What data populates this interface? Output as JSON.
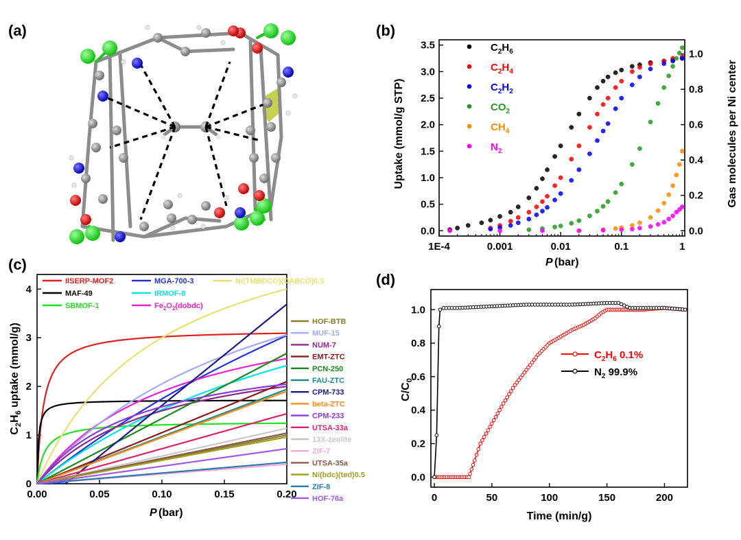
{
  "panels": {
    "a": "(a)",
    "b": "(b)",
    "c": "(c)",
    "d": "(d)"
  },
  "chart_data": [
    {
      "panel": "b",
      "type": "scatter",
      "x_scale": "log",
      "xlabel": "P (bar)",
      "ylabel": "Uptake (mmol/g STP)",
      "y2label": "Gas molecules per Ni center",
      "xlim": [
        0.0001,
        1.1
      ],
      "ylim": [
        -0.1,
        3.6
      ],
      "y2lim": [
        -0.03,
        1.08
      ],
      "x_ticks": [
        {
          "v": 0.0001,
          "label": "1E-4"
        },
        {
          "v": 0.001,
          "label": "0.001"
        },
        {
          "v": 0.01,
          "label": "0.01"
        },
        {
          "v": 0.1,
          "label": "0.1"
        },
        {
          "v": 1,
          "label": "1"
        }
      ],
      "y_ticks": [
        "0.0",
        "0.5",
        "1.0",
        "1.5",
        "2.0",
        "2.5",
        "3.0",
        "3.5"
      ],
      "y2_ticks": [
        "0.0",
        "0.2",
        "0.4",
        "0.6",
        "0.8",
        "1.0"
      ],
      "legend_position": "top-left",
      "series": [
        {
          "name": "C2H6",
          "sub": "6",
          "base": "C",
          "mid": "H",
          "color": "#000000",
          "x": [
            0.00015,
            0.0002,
            0.0003,
            0.0005,
            0.0007,
            0.001,
            0.0015,
            0.002,
            0.003,
            0.004,
            0.005,
            0.006,
            0.008,
            0.01,
            0.015,
            0.02,
            0.03,
            0.04,
            0.05,
            0.06,
            0.08,
            0.1,
            0.15,
            0.2,
            0.3,
            0.5,
            0.7,
            1.0
          ],
          "y": [
            0.02,
            0.05,
            0.1,
            0.15,
            0.2,
            0.27,
            0.35,
            0.45,
            0.62,
            0.8,
            0.98,
            1.15,
            1.4,
            1.6,
            1.95,
            2.2,
            2.5,
            2.7,
            2.82,
            2.9,
            2.98,
            3.03,
            3.1,
            3.13,
            3.17,
            3.2,
            3.22,
            3.25
          ]
        },
        {
          "name": "C2H4",
          "sub": "4",
          "base": "C",
          "mid": "H",
          "color": "#ff0000",
          "x": [
            0.0007,
            0.001,
            0.0015,
            0.002,
            0.003,
            0.004,
            0.005,
            0.006,
            0.008,
            0.01,
            0.015,
            0.02,
            0.03,
            0.04,
            0.05,
            0.06,
            0.08,
            0.1,
            0.15,
            0.2,
            0.3,
            0.5,
            0.7,
            1.0
          ],
          "y": [
            0.05,
            0.1,
            0.18,
            0.25,
            0.35,
            0.45,
            0.55,
            0.65,
            0.85,
            1.0,
            1.35,
            1.6,
            1.95,
            2.2,
            2.38,
            2.5,
            2.7,
            2.82,
            3.0,
            3.08,
            3.15,
            3.2,
            3.25,
            3.28
          ]
        },
        {
          "name": "C2H2",
          "sub": "2",
          "base": "C",
          "mid": "H",
          "color": "#0000ff",
          "x": [
            0.0007,
            0.001,
            0.0015,
            0.002,
            0.003,
            0.004,
            0.005,
            0.006,
            0.008,
            0.01,
            0.015,
            0.02,
            0.03,
            0.04,
            0.05,
            0.06,
            0.08,
            0.1,
            0.15,
            0.2,
            0.3,
            0.5,
            0.7,
            1.0
          ],
          "y": [
            0.03,
            0.06,
            0.1,
            0.15,
            0.22,
            0.3,
            0.37,
            0.44,
            0.58,
            0.7,
            0.95,
            1.15,
            1.45,
            1.7,
            1.88,
            2.02,
            2.3,
            2.5,
            2.75,
            2.9,
            3.05,
            3.15,
            3.2,
            3.25
          ]
        },
        {
          "name": "CO2",
          "sub": "2",
          "base": "CO",
          "mid": "",
          "color": "#1e9e1e",
          "x": [
            0.003,
            0.005,
            0.008,
            0.01,
            0.015,
            0.02,
            0.03,
            0.04,
            0.05,
            0.06,
            0.08,
            0.1,
            0.15,
            0.2,
            0.3,
            0.4,
            0.5,
            0.6,
            0.7,
            0.8,
            0.9,
            1.0
          ],
          "y": [
            0.02,
            0.04,
            0.07,
            0.09,
            0.14,
            0.19,
            0.28,
            0.37,
            0.46,
            0.55,
            0.72,
            0.88,
            1.25,
            1.55,
            2.05,
            2.4,
            2.7,
            2.92,
            3.1,
            3.25,
            3.35,
            3.45
          ]
        },
        {
          "name": "CH4",
          "sub": "4",
          "base": "CH",
          "mid": "",
          "color": "#ff8c00",
          "x": [
            0.02,
            0.05,
            0.08,
            0.1,
            0.15,
            0.2,
            0.3,
            0.4,
            0.5,
            0.6,
            0.7,
            0.8,
            0.9,
            1.0
          ],
          "y": [
            0.0,
            0.02,
            0.04,
            0.06,
            0.1,
            0.15,
            0.25,
            0.38,
            0.52,
            0.68,
            0.85,
            1.05,
            1.25,
            1.5
          ]
        },
        {
          "name": "N2",
          "sub": "2",
          "base": "N",
          "mid": "",
          "color": "#ff00ff",
          "x": [
            0.00015,
            0.001,
            0.005,
            0.02,
            0.05,
            0.1,
            0.15,
            0.2,
            0.3,
            0.4,
            0.5,
            0.6,
            0.7,
            0.8,
            0.9,
            1.0
          ],
          "y": [
            0.0,
            0.0,
            0.0,
            0.0,
            0.01,
            0.02,
            0.03,
            0.05,
            0.08,
            0.12,
            0.16,
            0.22,
            0.28,
            0.35,
            0.4,
            0.45
          ]
        }
      ]
    },
    {
      "panel": "c",
      "type": "line",
      "xlabel": "P (bar)",
      "ylabel": "C2H6 uptake (mmol/g)",
      "xlim": [
        0,
        0.2
      ],
      "ylim": [
        0,
        4.3
      ],
      "x_ticks": [
        "0.00",
        "0.05",
        "0.10",
        "0.15",
        "0.20"
      ],
      "y_ticks": [
        "0",
        "1",
        "2",
        "3",
        "4"
      ],
      "series": [
        {
          "name": "IISERP-MOF2",
          "color": "#e02020",
          "model": "lang",
          "q": 3.17,
          "k": 200
        },
        {
          "name": "MAF-49",
          "color": "#000000",
          "model": "lang",
          "q": 1.72,
          "k": 900
        },
        {
          "name": "SBMOF-1",
          "color": "#22e022",
          "model": "lang",
          "q": 1.28,
          "k": 170
        },
        {
          "name": "MGA-700-3",
          "color": "#2233dd",
          "model": "lang",
          "q": 12,
          "k": 1.7
        },
        {
          "name": "IRMOF-8",
          "color": "#00e5e5",
          "model": "lang",
          "q": 6,
          "k": 3.4
        },
        {
          "name": "Fe2O2(dobdc)",
          "color": "#ee22cc",
          "model": "lang",
          "q": 4,
          "k": 9
        },
        {
          "name": "Ni(TMBDCO)(DABCO)0.5",
          "color": "#e8e070",
          "model": "lang",
          "q": 6,
          "k": 10
        },
        {
          "name": "HOF-BTB",
          "color": "#8b7d2a",
          "model": "lin",
          "a": 5.0
        },
        {
          "name": "MUF-15",
          "color": "#a0a8ff",
          "model": "lang",
          "q": 6,
          "k": 5.2
        },
        {
          "name": "NUM-7",
          "color": "#8b2a8b",
          "model": "lang",
          "q": 3.0,
          "k": 10
        },
        {
          "name": "EMT-ZTC",
          "color": "#8b1a1a",
          "model": "lin",
          "a": 10.5
        },
        {
          "name": "PCN-250",
          "color": "#1a8b1a",
          "model": "lin",
          "a": 13.4
        },
        {
          "name": "FAU-ZTC",
          "color": "#1a8b8b",
          "model": "lin",
          "a": 9.7
        },
        {
          "name": "CPM-733",
          "color": "#1a1a8b",
          "model": "lag",
          "a": 20.5,
          "x0": 0.023
        },
        {
          "name": "beta-ZTC",
          "color": "#ff8c1a",
          "model": "lin",
          "a": 9.5
        },
        {
          "name": "CPM-233",
          "color": "#8a3ad8",
          "model": "lang",
          "q": 2.9,
          "k": 12
        },
        {
          "name": "UTSA-33a",
          "color": "#e0206a",
          "model": "lin",
          "a": 7.2
        },
        {
          "name": "13X-zeolite",
          "color": "#c8c8c8",
          "model": "lin",
          "a": 5.7
        },
        {
          "name": "ZIF-7",
          "color": "#f5a8d8",
          "model": "lin",
          "a": 2.0
        },
        {
          "name": "UTSA-35a",
          "color": "#8b5a4a",
          "model": "lin",
          "a": 5.2
        },
        {
          "name": "Ni(bdc)(ted)0.5",
          "color": "#a0a020",
          "model": "lin",
          "a": 4.8
        },
        {
          "name": "ZIF-8",
          "color": "#2a7ab0",
          "model": "lin",
          "a": 2.2
        },
        {
          "name": "HOF-76a",
          "color": "#a05ae0",
          "model": "lin",
          "a": 3.6
        }
      ]
    },
    {
      "panel": "d",
      "type": "line",
      "xlabel": "Time (min/g)",
      "ylabel": "C/C0",
      "xlim": [
        -3,
        220
      ],
      "ylim": [
        -0.06,
        1.12
      ],
      "x_ticks": [
        "0",
        "50",
        "100",
        "150",
        "200"
      ],
      "y_ticks": [
        "0.0",
        "0.2",
        "0.4",
        "0.6",
        "0.8",
        "1.0"
      ],
      "legend_position": "center",
      "series": [
        {
          "name": "C2H6 0.1%",
          "color": "#ff0000",
          "x": [
            0,
            30,
            31,
            35,
            40,
            50,
            60,
            70,
            80,
            90,
            100,
            110,
            120,
            130,
            140,
            145,
            150,
            155,
            160,
            180,
            200,
            218
          ],
          "y": [
            0,
            0,
            0.02,
            0.1,
            0.2,
            0.32,
            0.44,
            0.55,
            0.64,
            0.73,
            0.8,
            0.84,
            0.88,
            0.91,
            0.95,
            0.98,
            1.0,
            1.0,
            1.0,
            1.0,
            1.01,
            1.0
          ]
        },
        {
          "name": "N2 99.9%",
          "color": "#000000",
          "x": [
            0,
            2,
            4,
            5,
            8,
            20,
            50,
            80,
            100,
            120,
            150,
            160,
            170,
            200,
            218
          ],
          "y": [
            0,
            0.25,
            0.9,
            1.0,
            1.01,
            1.01,
            1.02,
            1.03,
            1.03,
            1.03,
            1.04,
            1.04,
            1.01,
            1.01,
            1.0
          ]
        }
      ]
    }
  ]
}
